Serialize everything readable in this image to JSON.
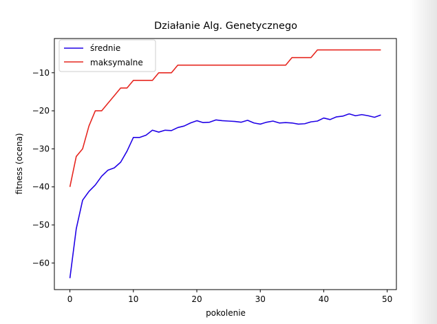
{
  "chart_data": {
    "type": "line",
    "title": "Działanie Alg. Genetycznego",
    "xlabel": "pokolenie",
    "ylabel": "fitness (ocena)",
    "xlim": [
      -2.45,
      51.45
    ],
    "ylim": [
      -67.0,
      -1.0
    ],
    "xticks": [
      0,
      10,
      20,
      30,
      40,
      50
    ],
    "yticks": [
      -60,
      -50,
      -40,
      -30,
      -20,
      -10
    ],
    "ytick_labels": [
      "−60",
      "−50",
      "−40",
      "−30",
      "−20",
      "−10"
    ],
    "grid": false,
    "legend_position": "upper-left",
    "x": [
      0,
      1,
      2,
      3,
      4,
      5,
      6,
      7,
      8,
      9,
      10,
      11,
      12,
      13,
      14,
      15,
      16,
      17,
      18,
      19,
      20,
      21,
      22,
      23,
      24,
      25,
      26,
      27,
      28,
      29,
      30,
      31,
      32,
      33,
      34,
      35,
      36,
      37,
      38,
      39,
      40,
      41,
      42,
      43,
      44,
      45,
      46,
      47,
      48,
      49
    ],
    "series": [
      {
        "name": "średnie",
        "color": "#1f00e6",
        "values": [
          -64.0,
          -51.0,
          -43.5,
          -41.2,
          -39.5,
          -37.2,
          -35.6,
          -35.0,
          -33.5,
          -30.6,
          -27.0,
          -27.0,
          -26.4,
          -25.1,
          -25.6,
          -25.1,
          -25.2,
          -24.4,
          -24.0,
          -23.2,
          -22.6,
          -23.1,
          -23.0,
          -22.4,
          -22.6,
          -22.7,
          -22.8,
          -23.0,
          -22.5,
          -23.2,
          -23.5,
          -23.0,
          -22.7,
          -23.2,
          -23.1,
          -23.2,
          -23.5,
          -23.4,
          -22.9,
          -22.7,
          -21.9,
          -22.3,
          -21.6,
          -21.4,
          -20.8,
          -21.3,
          -21.0,
          -21.3,
          -21.7,
          -21.1
        ]
      },
      {
        "name": "maksymalne",
        "color": "#e6261f",
        "values": [
          -40,
          -32,
          -30,
          -24,
          -20,
          -20,
          -18,
          -16,
          -14,
          -14,
          -12,
          -12,
          -12,
          -12,
          -10,
          -10,
          -10,
          -8,
          -8,
          -8,
          -8,
          -8,
          -8,
          -8,
          -8,
          -8,
          -8,
          -8,
          -8,
          -8,
          -8,
          -8,
          -8,
          -8,
          -8,
          -6,
          -6,
          -6,
          -6,
          -4,
          -4,
          -4,
          -4,
          -4,
          -4,
          -4,
          -4,
          -4,
          -4,
          -4
        ]
      }
    ]
  }
}
